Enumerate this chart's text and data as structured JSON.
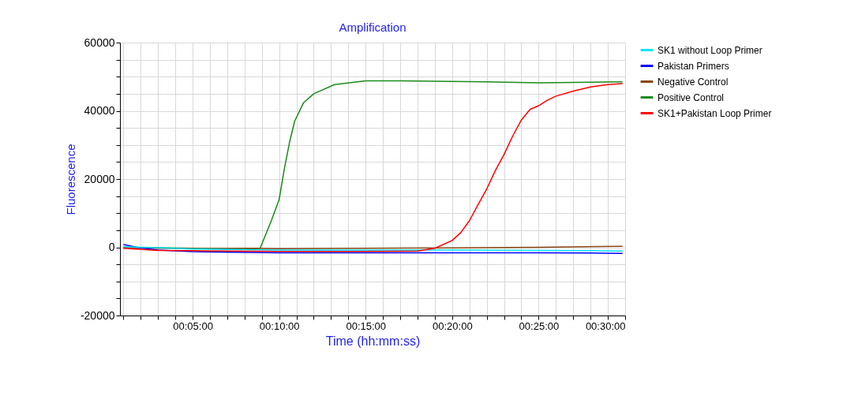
{
  "chart_data": {
    "type": "line",
    "title": "Amplification",
    "xlabel": "Time (hh:mm:ss)",
    "ylabel": "Fluorescence",
    "xlim": [
      0.8,
      30
    ],
    "ylim": [
      -20000,
      60000
    ],
    "xticks": [
      {
        "value": 1,
        "label": null
      },
      {
        "value": 2,
        "label": null
      },
      {
        "value": 3,
        "label": null
      },
      {
        "value": 4,
        "label": null
      },
      {
        "value": 5,
        "label": "00:05:00"
      },
      {
        "value": 6,
        "label": null
      },
      {
        "value": 7,
        "label": null
      },
      {
        "value": 8,
        "label": null
      },
      {
        "value": 9,
        "label": null
      },
      {
        "value": 10,
        "label": "00:10:00"
      },
      {
        "value": 11,
        "label": null
      },
      {
        "value": 12,
        "label": null
      },
      {
        "value": 13,
        "label": null
      },
      {
        "value": 14,
        "label": null
      },
      {
        "value": 15,
        "label": "00:15:00"
      },
      {
        "value": 16,
        "label": null
      },
      {
        "value": 17,
        "label": null
      },
      {
        "value": 18,
        "label": null
      },
      {
        "value": 19,
        "label": null
      },
      {
        "value": 20,
        "label": "00:20:00"
      },
      {
        "value": 21,
        "label": null
      },
      {
        "value": 22,
        "label": null
      },
      {
        "value": 23,
        "label": null
      },
      {
        "value": 24,
        "label": null
      },
      {
        "value": 25,
        "label": "00:25:00"
      },
      {
        "value": 26,
        "label": null
      },
      {
        "value": 27,
        "label": null
      },
      {
        "value": 28,
        "label": null
      },
      {
        "value": 29,
        "label": null
      },
      {
        "value": 30,
        "label": "00:30:00"
      }
    ],
    "yticks": [
      -20000,
      {
        "value": -15000,
        "label": null
      },
      {
        "value": -10000,
        "label": null
      },
      {
        "value": -5000,
        "label": null
      },
      0,
      {
        "value": 5000,
        "label": null
      },
      {
        "value": 10000,
        "label": null
      },
      {
        "value": 15000,
        "label": null
      },
      20000,
      {
        "value": 25000,
        "label": null
      },
      {
        "value": 30000,
        "label": null
      },
      {
        "value": 35000,
        "label": null
      },
      40000,
      {
        "value": 45000,
        "label": null
      },
      {
        "value": 50000,
        "label": null
      },
      {
        "value": 55000,
        "label": null
      },
      60000
    ],
    "grid": true,
    "legend": "top right",
    "marker": "none",
    "line_style": "solid",
    "series": [
      {
        "name": "SK1 without Loop Primer",
        "color": "#00e5ff",
        "x": [
          1,
          3,
          5,
          8,
          10,
          15,
          20,
          25,
          28,
          29.85
        ],
        "values": [
          200,
          -100,
          -500,
          -700,
          -800,
          -800,
          -800,
          -900,
          -1000,
          -1100
        ]
      },
      {
        "name": "Pakistan Primers",
        "color": "#0000ff",
        "x": [
          1,
          2,
          3,
          5,
          8,
          10,
          15,
          20,
          25,
          28,
          29.85
        ],
        "values": [
          800,
          -200,
          -800,
          -1300,
          -1500,
          -1600,
          -1600,
          -1600,
          -1600,
          -1700,
          -1800
        ]
      },
      {
        "name": "Negative Control",
        "color": "#8b4513",
        "x": [
          1,
          3,
          5,
          8,
          10,
          15,
          20,
          25,
          29.85
        ],
        "values": [
          0,
          -300,
          -400,
          -300,
          -400,
          -300,
          -200,
          0,
          300
        ]
      },
      {
        "name": "Positive Control",
        "color": "#1a8a1a",
        "x": [
          1,
          3,
          5,
          8,
          8.9,
          9.55,
          10,
          10.3,
          10.6,
          10.9,
          11.4,
          12,
          13.2,
          15,
          17,
          20,
          22,
          25,
          28,
          29.85
        ],
        "values": [
          0,
          -100,
          -300,
          -600,
          -300,
          7800,
          14000,
          23000,
          30800,
          37000,
          42300,
          45000,
          47700,
          48800,
          48800,
          48600,
          48500,
          48200,
          48400,
          48500
        ]
      },
      {
        "name": "SK1+Pakistan Loop Primer",
        "color": "#ff0000",
        "x": [
          1,
          3,
          5,
          10,
          15,
          18,
          19,
          20,
          20.5,
          21,
          21.5,
          22,
          22.5,
          23,
          23.5,
          24,
          24.5,
          25,
          25.5,
          26,
          27,
          28,
          29,
          29.85
        ],
        "values": [
          -300,
          -900,
          -1000,
          -1200,
          -1200,
          -1100,
          -300,
          2000,
          4300,
          7800,
          12500,
          17100,
          22500,
          27200,
          32600,
          37300,
          40400,
          41500,
          43100,
          44300,
          45800,
          47000,
          47700,
          48000
        ]
      }
    ]
  }
}
